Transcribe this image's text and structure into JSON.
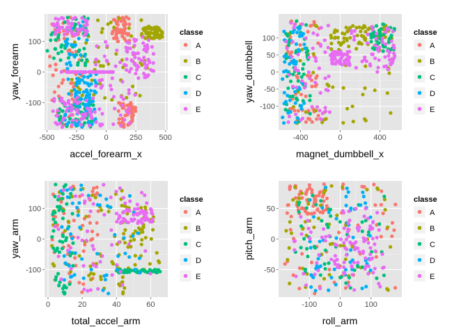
{
  "legend": {
    "title": "classe",
    "entries": [
      "A",
      "B",
      "C",
      "D",
      "E"
    ],
    "colors": {
      "A": "#F8766D",
      "B": "#A3A500",
      "C": "#00BF7D",
      "D": "#00B0F6",
      "E": "#E76BF3"
    }
  },
  "panel_background": "#E5E5E5",
  "grid_color": "#FFFFFF",
  "chart_data": [
    {
      "type": "scatter",
      "title": "",
      "xlabel": "accel_forearm_x",
      "ylabel": "yaw_forearm",
      "xlim": [
        -520,
        520
      ],
      "ylim": [
        -190,
        190
      ],
      "x_ticks": [
        -500,
        -250,
        0,
        250,
        500
      ],
      "x_tick_labels": [
        "-500",
        "-250",
        "0",
        "250",
        "500"
      ],
      "y_ticks": [
        -100,
        0,
        100
      ],
      "y_tick_labels": [
        "-100",
        "0",
        "100"
      ],
      "clusters": [
        {
          "class": "A",
          "x": [
            -480,
            -200
          ],
          "y": [
            -180,
            180
          ]
        },
        {
          "class": "A",
          "x": [
            50,
            200
          ],
          "y": [
            100,
            180
          ]
        },
        {
          "class": "A",
          "x": [
            100,
            250
          ],
          "y": [
            -180,
            -100
          ]
        },
        {
          "class": "B",
          "x": [
            -300,
            350
          ],
          "y": [
            -100,
            180
          ]
        },
        {
          "class": "B",
          "x": [
            300,
            480
          ],
          "y": [
            110,
            150
          ]
        },
        {
          "class": "C",
          "x": [
            -500,
            -150
          ],
          "y": [
            20,
            180
          ]
        },
        {
          "class": "C",
          "x": [
            -400,
            -100
          ],
          "y": [
            -180,
            -80
          ]
        },
        {
          "class": "D",
          "x": [
            -350,
            -150
          ],
          "y": [
            -180,
            180
          ]
        },
        {
          "class": "D",
          "x": [
            -260,
            -80
          ],
          "y": [
            -180,
            0
          ]
        },
        {
          "class": "E",
          "x": [
            -450,
            -100
          ],
          "y": [
            -180,
            -80
          ]
        },
        {
          "class": "E",
          "x": [
            -450,
            -150
          ],
          "y": [
            120,
            180
          ]
        },
        {
          "class": "E",
          "x": [
            -100,
            250
          ],
          "y": [
            -180,
            100
          ]
        },
        {
          "class": "E",
          "x": [
            150,
            400
          ],
          "y": [
            -20,
            120
          ]
        },
        {
          "class": "E",
          "x": [
            -380,
            60
          ],
          "y": [
            0,
            0
          ]
        }
      ]
    },
    {
      "type": "scatter",
      "title": "",
      "xlabel": "magnet_dumbbell_x",
      "ylabel": "yaw_dumbbell",
      "xlim": [
        -620,
        620
      ],
      "ylim": [
        -170,
        170
      ],
      "x_ticks": [
        -400,
        0,
        400
      ],
      "x_tick_labels": [
        "-400",
        "0",
        "400"
      ],
      "y_ticks": [
        -100,
        -50,
        0,
        50,
        100
      ],
      "y_tick_labels": [
        "-100",
        "-50",
        "0",
        "50",
        "100"
      ],
      "clusters": [
        {
          "class": "A",
          "x": [
            -550,
            -200
          ],
          "y": [
            -150,
            150
          ]
        },
        {
          "class": "B",
          "x": [
            -550,
            550
          ],
          "y": [
            -150,
            150
          ]
        },
        {
          "class": "B",
          "x": [
            -100,
            500
          ],
          "y": [
            60,
            140
          ]
        },
        {
          "class": "C",
          "x": [
            -550,
            -300
          ],
          "y": [
            -150,
            150
          ]
        },
        {
          "class": "C",
          "x": [
            300,
            550
          ],
          "y": [
            60,
            140
          ]
        },
        {
          "class": "D",
          "x": [
            -580,
            -350
          ],
          "y": [
            -150,
            130
          ]
        },
        {
          "class": "E",
          "x": [
            -550,
            -100
          ],
          "y": [
            -150,
            150
          ]
        },
        {
          "class": "E",
          "x": [
            -100,
            100
          ],
          "y": [
            20,
            60
          ]
        },
        {
          "class": "E",
          "x": [
            100,
            550
          ],
          "y": [
            0,
            140
          ]
        }
      ]
    },
    {
      "type": "scatter",
      "title": "",
      "xlabel": "total_accel_arm",
      "ylabel": "yaw_arm",
      "xlim": [
        -2,
        70
      ],
      "ylim": [
        -190,
        190
      ],
      "x_ticks": [
        0,
        20,
        40,
        60
      ],
      "x_tick_labels": [
        "0",
        "20",
        "40",
        "60"
      ],
      "y_ticks": [
        -100,
        0,
        100
      ],
      "y_tick_labels": [
        "-100",
        "0",
        "100"
      ],
      "clusters": [
        {
          "class": "A",
          "x": [
            2,
            30
          ],
          "y": [
            -180,
            180
          ]
        },
        {
          "class": "B",
          "x": [
            2,
            45
          ],
          "y": [
            -180,
            180
          ]
        },
        {
          "class": "B",
          "x": [
            40,
            65
          ],
          "y": [
            -110,
            110
          ]
        },
        {
          "class": "C",
          "x": [
            2,
            15
          ],
          "y": [
            -180,
            180
          ]
        },
        {
          "class": "C",
          "x": [
            40,
            66
          ],
          "y": [
            -110,
            -100
          ]
        },
        {
          "class": "D",
          "x": [
            5,
            55
          ],
          "y": [
            -180,
            180
          ]
        },
        {
          "class": "E",
          "x": [
            2,
            60
          ],
          "y": [
            -180,
            180
          ]
        },
        {
          "class": "E",
          "x": [
            40,
            62
          ],
          "y": [
            50,
            100
          ]
        }
      ]
    },
    {
      "type": "scatter",
      "title": "",
      "xlabel": "roll_arm",
      "ylabel": "pitch_arm",
      "xlim": [
        -200,
        200
      ],
      "ylim": [
        -95,
        95
      ],
      "x_ticks": [
        -100,
        0,
        100
      ],
      "x_tick_labels": [
        "-100",
        "0",
        "100"
      ],
      "y_ticks": [
        -50,
        0,
        50
      ],
      "y_tick_labels": [
        "-50",
        "0",
        "50"
      ],
      "clusters": [
        {
          "class": "A",
          "x": [
            -180,
            180
          ],
          "y": [
            -90,
            90
          ]
        },
        {
          "class": "A",
          "x": [
            -180,
            -40
          ],
          "y": [
            40,
            90
          ]
        },
        {
          "class": "B",
          "x": [
            -180,
            180
          ],
          "y": [
            -90,
            90
          ]
        },
        {
          "class": "C",
          "x": [
            -150,
            150
          ],
          "y": [
            -80,
            80
          ]
        },
        {
          "class": "D",
          "x": [
            -100,
            100
          ],
          "y": [
            -85,
            85
          ]
        },
        {
          "class": "E",
          "x": [
            -150,
            150
          ],
          "y": [
            -85,
            40
          ]
        },
        {
          "class": "E",
          "x": [
            -20,
            120
          ],
          "y": [
            -60,
            50
          ]
        }
      ]
    }
  ]
}
